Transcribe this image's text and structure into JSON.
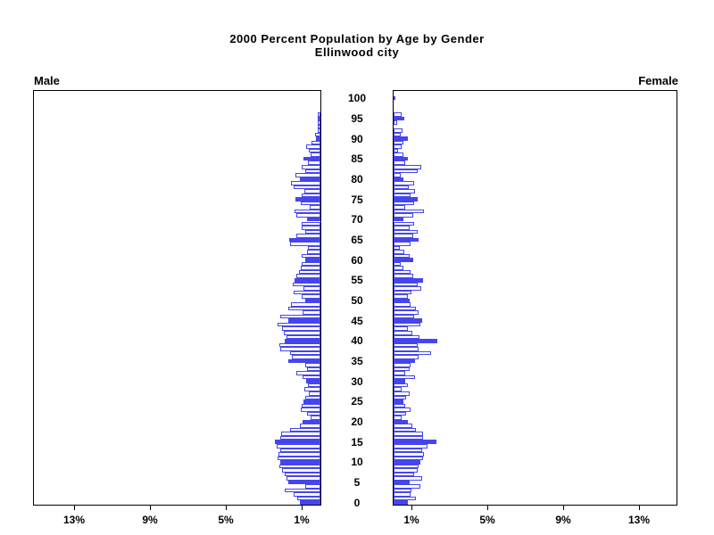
{
  "title": {
    "line1": "2000 Percent Population by Age by Gender",
    "line2": "Ellinwood city"
  },
  "panel_labels": {
    "male": "Male",
    "female": "Female"
  },
  "axis": {
    "percent_ticks": [
      1,
      5,
      9,
      13
    ],
    "percent_tick_labels_male": [
      "1%",
      "5%",
      "9%",
      "13%"
    ],
    "percent_tick_labels_female": [
      "1%",
      "5%",
      "9%",
      "13%"
    ],
    "percent_max": 15,
    "age_ticks": [
      0,
      5,
      10,
      15,
      20,
      25,
      30,
      35,
      40,
      45,
      50,
      55,
      60,
      65,
      70,
      75,
      80,
      85,
      90,
      95,
      100
    ]
  },
  "colors": {
    "bar_blue": "#4545f0",
    "axis_black": "#000000",
    "background": "#ffffff"
  },
  "chart_data": {
    "type": "bar",
    "subtype": "population_pyramid",
    "title": "2000 Percent Population by Age by Gender",
    "subtitle": "Ellinwood city",
    "unit": "percent",
    "x_range_percent": [
      0,
      15
    ],
    "x_ticks_percent": [
      1,
      5,
      9,
      13
    ],
    "age_range": [
      0,
      100
    ],
    "age_axis_tick_step": 5,
    "highlight_rule": "bars for ages divisible by 5 are filled blue; other ages are white with blue outline",
    "legend_position": "none",
    "grid": false,
    "series": [
      {
        "name": "Male",
        "side": "left",
        "ages": "0-100 by 1",
        "values": [
          1.1,
          1.2,
          1.4,
          1.9,
          0.8,
          1.7,
          1.8,
          1.9,
          2.0,
          2.15,
          2.12,
          2.25,
          2.2,
          2.1,
          2.3,
          2.4,
          2.1,
          2.05,
          1.6,
          1.1,
          0.95,
          0.5,
          0.7,
          1.05,
          1.0,
          0.9,
          0.8,
          0.6,
          0.85,
          0.65,
          0.75,
          0.95,
          1.25,
          0.7,
          0.8,
          1.7,
          1.5,
          1.6,
          2.1,
          2.15,
          1.9,
          1.8,
          1.95,
          2.0,
          2.25,
          1.7,
          2.1,
          0.95,
          1.7,
          1.55,
          0.8,
          1.0,
          1.4,
          0.9,
          1.45,
          1.35,
          1.25,
          1.15,
          1.05,
          1.0,
          0.8,
          1.0,
          0.7,
          0.65,
          1.6,
          1.65,
          1.25,
          0.8,
          1.0,
          1.0,
          0.7,
          1.25,
          1.35,
          0.55,
          1.05,
          1.3,
          1.0,
          0.85,
          1.4,
          1.55,
          1.1,
          1.3,
          0.8,
          1.0,
          0.65,
          0.9,
          0.5,
          0.6,
          0.75,
          0.45,
          0.25,
          0.3,
          0.12,
          0.12,
          0.12,
          0.15,
          0.15,
          0,
          0,
          0,
          0
        ]
      },
      {
        "name": "Female",
        "side": "right",
        "ages": "0-100 by 1",
        "values": [
          0.75,
          1.18,
          0.9,
          0.94,
          1.42,
          0.83,
          1.52,
          1.1,
          1.26,
          1.31,
          1.42,
          1.55,
          1.6,
          1.5,
          1.8,
          2.27,
          1.57,
          1.57,
          1.18,
          0.99,
          0.74,
          0.42,
          0.67,
          0.9,
          0.63,
          0.52,
          0.67,
          0.86,
          0.42,
          0.74,
          0.63,
          1.15,
          0.63,
          0.86,
          0.9,
          1.15,
          1.31,
          1.97,
          1.33,
          1.26,
          2.31,
          1.37,
          0.99,
          0.74,
          1.42,
          1.52,
          1.1,
          1.31,
          1.18,
          0.9,
          0.83,
          0.74,
          0.94,
          1.46,
          1.26,
          1.57,
          1.05,
          0.9,
          0.52,
          0.39,
          1.02,
          0.86,
          0.58,
          0.31,
          0.9,
          1.31,
          1.05,
          1.26,
          0.83,
          1.1,
          0.52,
          1.05,
          1.62,
          0.63,
          1.1,
          1.29,
          0.9,
          1.15,
          0.79,
          1.1,
          0.52,
          0.39,
          1.26,
          1.46,
          0.63,
          0.74,
          0.52,
          0.24,
          0.42,
          0.52,
          0.74,
          0.36,
          0.47,
          0,
          0.2,
          0.55,
          0.42,
          0,
          0,
          0,
          0.11
        ]
      }
    ]
  }
}
